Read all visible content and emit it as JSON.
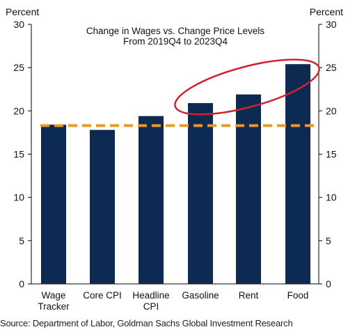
{
  "chart_data": {
    "type": "bar",
    "title": [
      "Change in Wages vs. Change Price Levels",
      "From 2019Q4 to 2023Q4"
    ],
    "categories": [
      [
        "Wage",
        "Tracker"
      ],
      [
        "Core CPI"
      ],
      [
        "Headline",
        "CPI"
      ],
      [
        "Gasoline"
      ],
      [
        "Rent"
      ],
      [
        "Food"
      ]
    ],
    "values": [
      18.4,
      17.8,
      19.4,
      20.9,
      21.9,
      25.4
    ],
    "reference_line": {
      "value": 18.3,
      "style": "dashed",
      "color": "#e69a2e"
    },
    "ylabel_left": "Percent",
    "ylabel_right": "Percent",
    "ylim": [
      0,
      30
    ],
    "yticks": [
      0,
      5,
      10,
      15,
      20,
      25,
      30
    ],
    "grid": false,
    "bar_color": "#0d2a52",
    "highlight_ellipse_color": "#d0232e",
    "highlighted_categories": [
      "Gasoline",
      "Rent",
      "Food"
    ]
  },
  "source": "Source: Department of Labor, Goldman Sachs Global Investment Research"
}
